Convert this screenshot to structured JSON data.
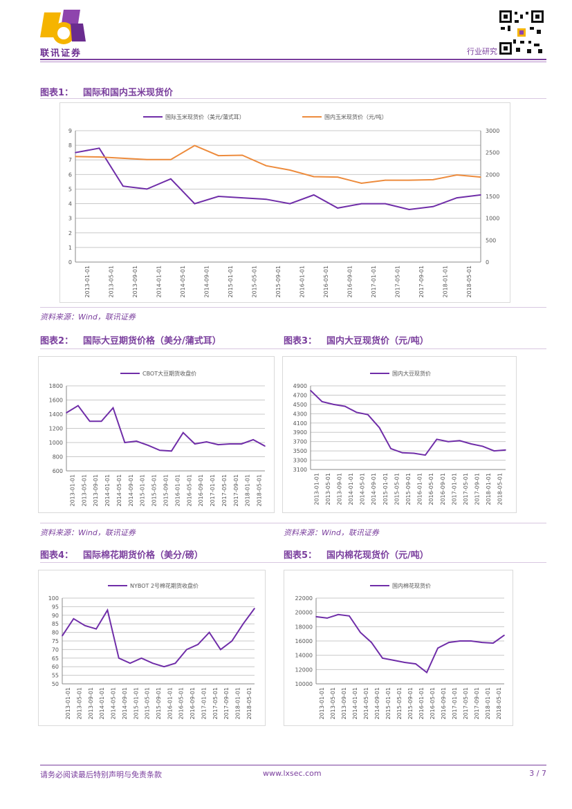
{
  "header": {
    "company": "联讯证券",
    "section": "行业研究"
  },
  "figures": [
    {
      "num": "图表1：",
      "title": "国际和国内玉米现货价",
      "source": "资料来源：Wind，联讯证券"
    },
    {
      "num": "图表2：",
      "title": "国际大豆期货价格（美分/蒲式耳）",
      "source": "资料来源：Wind，联讯证券"
    },
    {
      "num": "图表3：",
      "title": "国内大豆现货价（元/吨）",
      "source": "资料来源：Wind，联讯证券"
    },
    {
      "num": "图表4：",
      "title": "国际棉花期货价格（美分/磅）",
      "source": ""
    },
    {
      "num": "图表5：",
      "title": "国内棉花现货价（元/吨）",
      "source": ""
    }
  ],
  "footer": {
    "disclaimer": "请务必阅读最后特别声明与免责条款",
    "url": "www.lxsec.com",
    "page": "3 / 7"
  },
  "chart_data": [
    {
      "type": "line",
      "x": [
        "2013-01",
        "2013-05",
        "2013-09",
        "2014-01",
        "2014-05",
        "2014-09",
        "2015-01",
        "2015-05",
        "2015-09",
        "2016-01",
        "2016-05",
        "2016-09",
        "2017-01",
        "2017-05",
        "2017-09",
        "2018-01",
        "2018-05",
        "2018-07"
      ],
      "xticks": [
        "2013-01-01",
        "2013-05-01",
        "2013-09-01",
        "2014-01-01",
        "2014-05-01",
        "2014-09-01",
        "2015-01-01",
        "2015-05-01",
        "2015-09-01",
        "2016-01-01",
        "2016-05-01",
        "2016-09-01",
        "2017-01-01",
        "2017-05-01",
        "2017-09-01",
        "2018-01-01",
        "2018-05-01"
      ],
      "series": [
        {
          "name": "国际玉米现货价（美元/蒲式耳）",
          "axis": "left",
          "color": "#6f2da8",
          "values": [
            7.5,
            7.8,
            5.2,
            5.0,
            5.7,
            4.0,
            4.5,
            4.4,
            4.3,
            4.0,
            4.6,
            3.7,
            4.0,
            4.0,
            3.6,
            3.8,
            4.4,
            4.6
          ]
        },
        {
          "name": "国内玉米现货价（元/吨）",
          "axis": "right",
          "color": "#ed8b3c",
          "values": [
            2410,
            2400,
            2370,
            2340,
            2340,
            2660,
            2430,
            2440,
            2200,
            2100,
            1950,
            1940,
            1800,
            1870,
            1870,
            1880,
            1990,
            1940
          ]
        }
      ],
      "ylim_left": [
        0,
        9
      ],
      "yticks_left": [
        "0",
        "1",
        "2",
        "3",
        "4",
        "5",
        "6",
        "7",
        "8",
        "9"
      ],
      "ylim_right": [
        0,
        3000
      ],
      "yticks_right": [
        "0",
        "500",
        "1000",
        "1500",
        "2000",
        "2500",
        "3000"
      ]
    },
    {
      "type": "line",
      "x": [
        "2013-01",
        "2013-05",
        "2013-09",
        "2014-01",
        "2014-05",
        "2014-09",
        "2015-01",
        "2015-05",
        "2015-09",
        "2016-01",
        "2016-05",
        "2016-09",
        "2017-01",
        "2017-05",
        "2017-09",
        "2018-01",
        "2018-05",
        "2018-07"
      ],
      "xticks": [
        "2013-01-01",
        "2013-05-01",
        "2013-09-01",
        "2014-01-01",
        "2014-05-01",
        "2014-09-01",
        "2015-01-01",
        "2015-05-01",
        "2015-09-01",
        "2016-01-01",
        "2016-05-01",
        "2016-09-01",
        "2017-01-01",
        "2017-05-01",
        "2017-09-01",
        "2018-01-01",
        "2018-05-01"
      ],
      "series": [
        {
          "name": "CBOT大豆期货收盘价",
          "color": "#6f2da8",
          "values": [
            1420,
            1520,
            1300,
            1300,
            1490,
            1000,
            1020,
            960,
            890,
            880,
            1140,
            980,
            1010,
            970,
            980,
            980,
            1040,
            950
          ]
        }
      ],
      "ylim": [
        600,
        1800
      ],
      "yticks": [
        "600",
        "800",
        "1000",
        "1200",
        "1400",
        "1600",
        "1800"
      ]
    },
    {
      "type": "line",
      "x": [
        "2013-01",
        "2013-05",
        "2013-09",
        "2014-01",
        "2014-05",
        "2014-09",
        "2015-01",
        "2015-05",
        "2015-09",
        "2016-01",
        "2016-05",
        "2016-09",
        "2017-01",
        "2017-05",
        "2017-09",
        "2018-01",
        "2018-05",
        "2018-07"
      ],
      "xticks": [
        "2013-01-01",
        "2013-05-01",
        "2013-09-01",
        "2014-01-01",
        "2014-05-01",
        "2014-09-01",
        "2015-01-01",
        "2015-05-01",
        "2015-09-01",
        "2016-01-01",
        "2016-05-01",
        "2016-09-01",
        "2017-01-01",
        "2017-05-01",
        "2017-09-01",
        "2018-01-01",
        "2018-05-01"
      ],
      "series": [
        {
          "name": "国内大豆现货价",
          "color": "#6f2da8",
          "values": [
            4800,
            4560,
            4500,
            4460,
            4330,
            4280,
            4000,
            3550,
            3460,
            3450,
            3410,
            3750,
            3700,
            3720,
            3650,
            3600,
            3500,
            3520
          ]
        }
      ],
      "ylim": [
        3100,
        4900
      ],
      "yticks": [
        "3100",
        "3300",
        "3500",
        "3700",
        "3900",
        "4100",
        "4300",
        "4500",
        "4700",
        "4900"
      ]
    },
    {
      "type": "line",
      "x": [
        "2013-01",
        "2013-05",
        "2013-09",
        "2014-01",
        "2014-05",
        "2014-09",
        "2015-01",
        "2015-05",
        "2015-09",
        "2016-01",
        "2016-05",
        "2016-09",
        "2017-01",
        "2017-05",
        "2017-09",
        "2018-01",
        "2018-05",
        "2018-07"
      ],
      "xticks": [
        "2013-01-01",
        "2013-05-01",
        "2013-09-01",
        "2014-01-01",
        "2014-05-01",
        "2014-09-01",
        "2015-01-01",
        "2015-05-01",
        "2015-09-01",
        "2016-01-01",
        "2016-05-01",
        "2016-09-01",
        "2017-01-01",
        "2017-05-01",
        "2017-09-01",
        "2018-01-01",
        "2018-05-01"
      ],
      "series": [
        {
          "name": "NYBOT 2号棉花期货收盘价",
          "color": "#6f2da8",
          "values": [
            78,
            88,
            84,
            82,
            93,
            65,
            62,
            65,
            62,
            60,
            62,
            70,
            73,
            80,
            70,
            75,
            85,
            94
          ]
        }
      ],
      "ylim": [
        50,
        100
      ],
      "yticks": [
        "50",
        "55",
        "60",
        "65",
        "70",
        "75",
        "80",
        "85",
        "90",
        "95",
        "100"
      ]
    },
    {
      "type": "line",
      "x": [
        "2013-01",
        "2013-05",
        "2013-09",
        "2014-01",
        "2014-05",
        "2014-09",
        "2015-01",
        "2015-05",
        "2015-09",
        "2016-01",
        "2016-05",
        "2016-09",
        "2017-01",
        "2017-05",
        "2017-09",
        "2018-01",
        "2018-05",
        "2018-07"
      ],
      "xticks": [
        "2013-01-01",
        "2013-05-01",
        "2013-09-01",
        "2014-01-01",
        "2014-05-01",
        "2014-09-01",
        "2015-01-01",
        "2015-05-01",
        "2015-09-01",
        "2016-01-01",
        "2016-05-01",
        "2016-09-01",
        "2017-01-01",
        "2017-05-01",
        "2017-09-01",
        "2018-01-01",
        "2018-05-01"
      ],
      "series": [
        {
          "name": "国内棉花现货价",
          "color": "#6f2da8",
          "values": [
            19400,
            19200,
            19700,
            19500,
            17200,
            15800,
            13600,
            13300,
            13000,
            12800,
            11600,
            15000,
            15800,
            16000,
            16000,
            15800,
            15700,
            16800
          ]
        }
      ],
      "ylim": [
        10000,
        22000
      ],
      "yticks": [
        "10000",
        "12000",
        "14000",
        "16000",
        "18000",
        "20000",
        "22000"
      ]
    }
  ]
}
